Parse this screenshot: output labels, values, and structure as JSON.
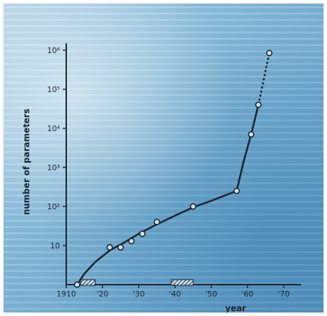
{
  "chart_data": {
    "type": "line",
    "title": "",
    "xlabel": "year",
    "ylabel": "number of parameters",
    "x_ticks": [
      {
        "value": 1910,
        "label": "1910"
      },
      {
        "value": 1920,
        "label": "'20"
      },
      {
        "value": 1930,
        "label": "'30"
      },
      {
        "value": 1940,
        "label": "'40"
      },
      {
        "value": 1950,
        "label": "'50"
      },
      {
        "value": 1960,
        "label": "'60"
      },
      {
        "value": 1970,
        "label": "'70"
      }
    ],
    "y_ticks": [
      {
        "value": 10,
        "label": "10"
      },
      {
        "value": 100,
        "label": "10²"
      },
      {
        "value": 1000,
        "label": "10³"
      },
      {
        "value": 10000,
        "label": "10⁴"
      },
      {
        "value": 100000,
        "label": "10⁵"
      },
      {
        "value": 1000000,
        "label": "10⁶"
      }
    ],
    "xlim": [
      1910,
      1972
    ],
    "ylim": [
      1,
      1000000
    ],
    "y_scale": "log",
    "grid": false,
    "series": [
      {
        "points": [
          {
            "x": 1913,
            "y": 1
          },
          {
            "x": 1922,
            "y": 9
          },
          {
            "x": 1925,
            "y": 9
          },
          {
            "x": 1928,
            "y": 13
          },
          {
            "x": 1931,
            "y": 20
          },
          {
            "x": 1935,
            "y": 40
          },
          {
            "x": 1945,
            "y": 100
          },
          {
            "x": 1957,
            "y": 250
          },
          {
            "x": 1961,
            "y": 7000
          },
          {
            "x": 1963,
            "y": 40000
          },
          {
            "x": 1966,
            "y": 850000
          }
        ],
        "curve_solid": [
          {
            "x": 1913,
            "y": 1
          },
          {
            "x": 1915,
            "y": 1.9
          },
          {
            "x": 1918,
            "y": 3.8
          },
          {
            "x": 1922,
            "y": 7.5
          },
          {
            "x": 1926,
            "y": 12
          },
          {
            "x": 1930,
            "y": 20
          },
          {
            "x": 1935,
            "y": 35
          },
          {
            "x": 1940,
            "y": 58
          },
          {
            "x": 1945,
            "y": 95
          },
          {
            "x": 1950,
            "y": 140
          },
          {
            "x": 1957,
            "y": 250
          },
          {
            "x": 1959,
            "y": 1500
          },
          {
            "x": 1961,
            "y": 7000
          },
          {
            "x": 1963,
            "y": 40000
          }
        ],
        "curve_dashed": [
          {
            "x": 1963,
            "y": 40000
          },
          {
            "x": 1966,
            "y": 850000
          }
        ]
      }
    ],
    "hatched_ranges": [
      {
        "x_start": 1914,
        "x_end": 1918
      },
      {
        "x_start": 1939,
        "x_end": 1945
      }
    ],
    "colors": {
      "ink": "#1c2430",
      "hatch": "#1c2430",
      "marker_fill": "#cfe3ef"
    }
  }
}
